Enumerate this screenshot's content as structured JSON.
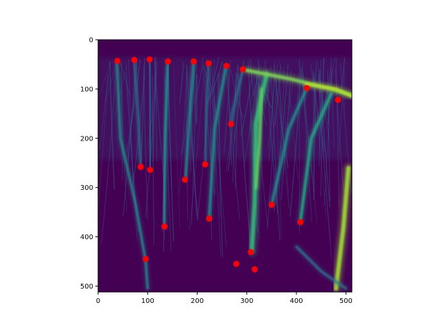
{
  "chart_data": {
    "type": "scatter",
    "title": "",
    "xlabel": "",
    "ylabel": "",
    "background": "heatmap-image",
    "colormap": "viridis",
    "xlim": [
      0,
      512
    ],
    "ylim": [
      512,
      0
    ],
    "y_inverted": true,
    "grid": false,
    "legend": "none",
    "xticks": [
      0,
      100,
      200,
      300,
      400,
      500
    ],
    "yticks": [
      0,
      100,
      200,
      300,
      400,
      500
    ],
    "marker_color": "#ff0000",
    "background_color": "#440154",
    "series": [
      {
        "x": [
          39,
          73,
          104,
          141,
          193,
          223,
          259,
          292,
          421,
          484,
          268,
          86,
          105,
          216,
          175,
          350,
          408,
          224,
          134,
          96,
          279,
          308,
          316
        ],
        "y": [
          43,
          41,
          40,
          44,
          44,
          48,
          53,
          60,
          98,
          122,
          171,
          258,
          264,
          253,
          284,
          335,
          370,
          363,
          379,
          445,
          455,
          431,
          466
        ]
      }
    ]
  }
}
